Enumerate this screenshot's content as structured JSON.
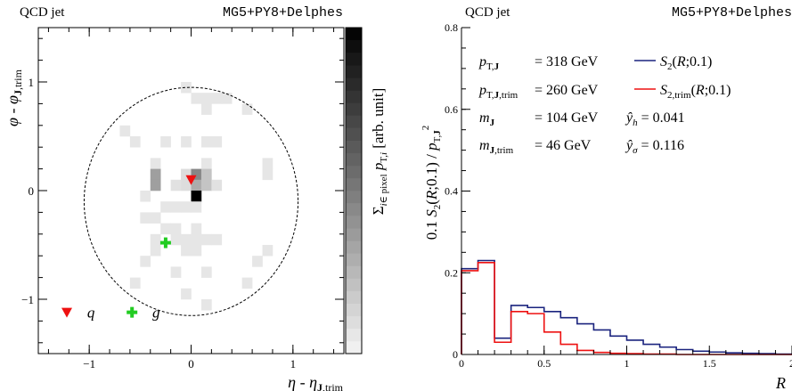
{
  "chart_data": [
    {
      "type": "heatmap",
      "title_left": "QCD jet",
      "title_right": "MG5+PY8+Delphes",
      "xlabel": "η - η_J,trim",
      "ylabel": "φ - φ_J,trim",
      "colorbar_label": "Σ_{i∈pixel} p_T,i [arb. unit]",
      "xlim": [
        -1.5,
        1.5
      ],
      "ylim": [
        -1.5,
        1.5
      ],
      "xticks": [
        -1,
        0,
        1
      ],
      "yticks": [
        -1,
        0,
        1
      ],
      "xtick_labels": [
        "−1",
        "0",
        "1"
      ],
      "ytick_labels": [
        "−1",
        "0",
        "1"
      ],
      "jet_radius": 1.05,
      "pixel_size": 0.1,
      "pixels": [
        {
          "x": -0.65,
          "y": 0.55,
          "v": 0.06
        },
        {
          "x": -0.05,
          "y": 0.95,
          "v": 0.06
        },
        {
          "x": 0.05,
          "y": 0.85,
          "v": 0.06
        },
        {
          "x": 0.15,
          "y": 0.85,
          "v": 0.06
        },
        {
          "x": 0.25,
          "y": 0.85,
          "v": 0.06
        },
        {
          "x": 0.35,
          "y": 0.85,
          "v": 0.06
        },
        {
          "x": 0.15,
          "y": 0.75,
          "v": 0.06
        },
        {
          "x": 0.55,
          "y": 0.75,
          "v": 0.06
        },
        {
          "x": -0.55,
          "y": 0.45,
          "v": 0.06
        },
        {
          "x": -0.25,
          "y": 0.45,
          "v": 0.06
        },
        {
          "x": -0.05,
          "y": 0.45,
          "v": 0.06
        },
        {
          "x": 0.15,
          "y": 0.45,
          "v": 0.06
        },
        {
          "x": 0.25,
          "y": 0.45,
          "v": 0.06
        },
        {
          "x": 0.15,
          "y": 0.25,
          "v": 0.06
        },
        {
          "x": -0.35,
          "y": 0.25,
          "v": 0.06
        },
        {
          "x": 0.75,
          "y": 0.25,
          "v": 0.06
        },
        {
          "x": 0.75,
          "y": 0.15,
          "v": 0.06
        },
        {
          "x": -0.35,
          "y": 0.15,
          "v": 0.35
        },
        {
          "x": -0.35,
          "y": 0.05,
          "v": 0.35
        },
        {
          "x": -0.05,
          "y": 0.15,
          "v": 0.1
        },
        {
          "x": 0.05,
          "y": 0.15,
          "v": 0.45
        },
        {
          "x": 0.15,
          "y": 0.15,
          "v": 0.2
        },
        {
          "x": -0.05,
          "y": 0.05,
          "v": 0.1
        },
        {
          "x": 0.05,
          "y": 0.05,
          "v": 0.3
        },
        {
          "x": 0.15,
          "y": 0.05,
          "v": 0.2
        },
        {
          "x": 0.05,
          "y": -0.05,
          "v": 1.0
        },
        {
          "x": -0.15,
          "y": 0.05,
          "v": 0.08
        },
        {
          "x": 0.25,
          "y": 0.05,
          "v": 0.08
        },
        {
          "x": -0.45,
          "y": -0.05,
          "v": 0.06
        },
        {
          "x": -0.15,
          "y": -0.15,
          "v": 0.06
        },
        {
          "x": -0.05,
          "y": -0.15,
          "v": 0.06
        },
        {
          "x": 0.05,
          "y": -0.15,
          "v": 0.06
        },
        {
          "x": -0.25,
          "y": -0.15,
          "v": 0.06
        },
        {
          "x": -0.45,
          "y": -0.25,
          "v": 0.06
        },
        {
          "x": -0.35,
          "y": -0.25,
          "v": 0.06
        },
        {
          "x": -0.25,
          "y": -0.35,
          "v": 0.06
        },
        {
          "x": -0.15,
          "y": -0.35,
          "v": 0.06
        },
        {
          "x": 0.05,
          "y": -0.35,
          "v": 0.06
        },
        {
          "x": -0.35,
          "y": -0.45,
          "v": 0.06
        },
        {
          "x": -0.15,
          "y": -0.45,
          "v": 0.06
        },
        {
          "x": -0.05,
          "y": -0.45,
          "v": 0.06
        },
        {
          "x": 0.05,
          "y": -0.45,
          "v": 0.06
        },
        {
          "x": 0.15,
          "y": -0.45,
          "v": 0.06
        },
        {
          "x": 0.25,
          "y": -0.45,
          "v": 0.06
        },
        {
          "x": -0.35,
          "y": -0.55,
          "v": 0.06
        },
        {
          "x": -0.05,
          "y": -0.55,
          "v": 0.06
        },
        {
          "x": 0.05,
          "y": -0.55,
          "v": 0.06
        },
        {
          "x": -0.45,
          "y": -0.65,
          "v": 0.06
        },
        {
          "x": -0.15,
          "y": -0.75,
          "v": 0.06
        },
        {
          "x": 0.15,
          "y": -0.75,
          "v": 0.06
        },
        {
          "x": -0.55,
          "y": -0.85,
          "v": 0.06
        },
        {
          "x": 0.55,
          "y": -0.85,
          "v": 0.06
        },
        {
          "x": 0.15,
          "y": -1.05,
          "v": 0.06
        },
        {
          "x": -0.05,
          "y": -0.95,
          "v": 0.06
        },
        {
          "x": 0.75,
          "y": -0.55,
          "v": 0.06
        },
        {
          "x": 0.65,
          "y": -0.65,
          "v": 0.06
        }
      ],
      "markers": [
        {
          "name": "trimmed-quark-marker",
          "kind": "triangle",
          "color": "#ee1111",
          "x": 0.0,
          "y": 0.1
        },
        {
          "name": "trimmed-gluon-marker",
          "kind": "cross",
          "color": "#22cc22",
          "x": -0.25,
          "y": -0.48
        },
        {
          "name": "legend-quark-marker",
          "kind": "triangle",
          "color": "#ee1111",
          "x": -1.22,
          "y": -1.12
        },
        {
          "name": "legend-gluon-marker",
          "kind": "cross",
          "color": "#22cc22",
          "x": -0.58,
          "y": -1.12
        }
      ],
      "legend": [
        {
          "label": "q",
          "x": -1.02,
          "y": -1.12
        },
        {
          "label": "g",
          "x": -0.38,
          "y": -1.12
        }
      ]
    },
    {
      "type": "line",
      "title_left": "QCD jet",
      "title_right": "MG5+PY8+Delphes",
      "xlabel": "R",
      "ylabel": "0.1 S_2(R;0.1) / p_T,J^2",
      "xlim": [
        0,
        2
      ],
      "ylim": [
        0,
        0.8
      ],
      "xticks": [
        0,
        0.5,
        1,
        1.5,
        2
      ],
      "yticks": [
        0,
        0.2,
        0.4,
        0.6,
        0.8
      ],
      "xtick_labels": [
        "0",
        "0.5",
        "1",
        "1.5",
        "2"
      ],
      "ytick_labels": [
        "0",
        "0.2",
        "0.4",
        "0.6",
        "0.8"
      ],
      "bin_width": 0.1,
      "series": [
        {
          "name": "S_2(R;0.1)",
          "color": "#1a237e",
          "values": [
            0.21,
            0.23,
            0.04,
            0.12,
            0.115,
            0.105,
            0.09,
            0.075,
            0.06,
            0.045,
            0.035,
            0.025,
            0.018,
            0.012,
            0.008,
            0.006,
            0.004,
            0.003,
            0.002,
            0.001
          ]
        },
        {
          "name": "S_2,trim(R;0.1)",
          "color": "#ee1111",
          "values": [
            0.205,
            0.225,
            0.03,
            0.105,
            0.1,
            0.055,
            0.025,
            0.01,
            0.005,
            0.003,
            0.002,
            0.001,
            0.001,
            0.0,
            0.0,
            0.0,
            0.0,
            0.0,
            0.0,
            0.0
          ]
        }
      ],
      "info": [
        {
          "label": "p_T,J",
          "value": "= 318 GeV"
        },
        {
          "label": "p_T,J,trim",
          "value": "= 260 GeV"
        },
        {
          "label": "m_J",
          "value": "= 104 GeV"
        },
        {
          "label": "m_J,trim",
          "value": "= 46 GeV"
        }
      ],
      "extra_labels": [
        {
          "text": "ŷ_h = 0.041"
        },
        {
          "text": "ŷ_σ = 0.116"
        }
      ]
    }
  ]
}
